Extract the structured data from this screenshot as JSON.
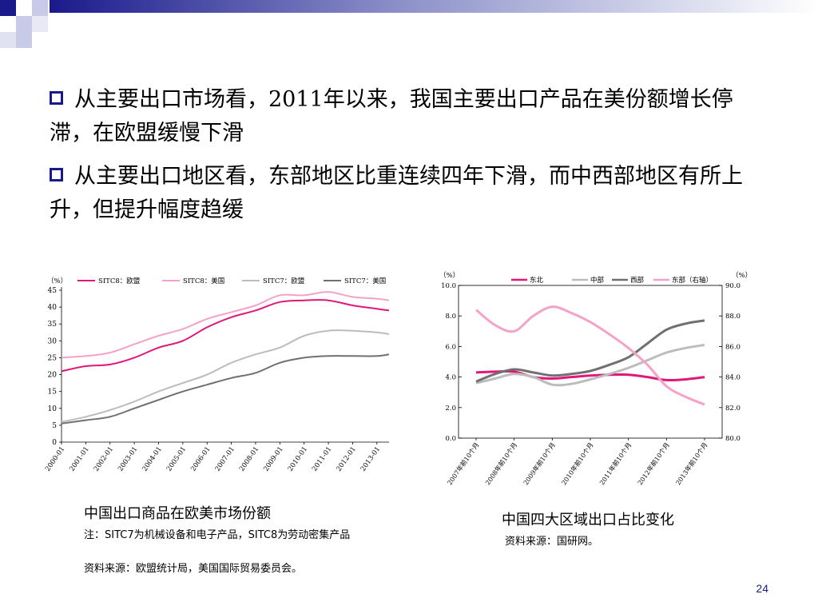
{
  "slide": {
    "bullets": [
      "从主要出口市场看，2011年以来，我国主要出口产品在美份额增长停滞，在欧盟缓慢下滑",
      "从主要出口地区看，东部地区比重连续四年下滑，而中西部地区有所上升，但提升幅度趋缓"
    ],
    "page_number": "24",
    "colors": {
      "bullet_box": "#1a1a8c",
      "deco_dark": "#1a1a8c",
      "deco_light": "#a8acd8"
    }
  },
  "chart_data": [
    {
      "type": "line",
      "caption": "中国出口商品在欧美市场份额",
      "notes": [
        "注：SITC7为机械设备和电子产品，SITC8为劳动密集产品",
        "资料来源：欧盟统计局，美国国际贸易委员会。"
      ],
      "yunit": "（%）",
      "ylim": [
        0,
        45
      ],
      "yticks": [
        "0",
        "5",
        "10",
        "15",
        "20",
        "25",
        "30",
        "35",
        "40",
        "45"
      ],
      "xlim": [
        2000,
        2013.5
      ],
      "xticks": [
        "2000-01",
        "2001-01",
        "2002-01",
        "2003-01",
        "2004-01",
        "2005-01",
        "2006-01",
        "2007-01",
        "2008-01",
        "2009-01",
        "2010-01",
        "2011-01",
        "2012-01",
        "2013-01"
      ],
      "x": [
        2000,
        2001,
        2002,
        2003,
        2004,
        2005,
        2006,
        2007,
        2008,
        2009,
        2010,
        2011,
        2012,
        2013,
        2013.5
      ],
      "series": [
        {
          "name": "SITC8：欧盟",
          "color": "#e0187a",
          "values": [
            21,
            22.5,
            23,
            25,
            28,
            30,
            34,
            37,
            39,
            41.5,
            42,
            42,
            40.5,
            39.5,
            39
          ]
        },
        {
          "name": "SITC8：美国",
          "color": "#f4a2c8",
          "values": [
            25,
            25.5,
            26.5,
            29,
            31.5,
            33.5,
            36.5,
            38.5,
            40.5,
            43.5,
            43.5,
            44.5,
            43,
            42.5,
            42
          ]
        },
        {
          "name": "SITC7：欧盟",
          "color": "#bcbcbc",
          "values": [
            6,
            7.5,
            9.5,
            12,
            15,
            17.5,
            20,
            23.5,
            26,
            28,
            31.5,
            33,
            33,
            32.5,
            32
          ]
        },
        {
          "name": "SITC7：美国",
          "color": "#707070",
          "values": [
            5.5,
            6.5,
            7.5,
            10,
            12.5,
            15,
            17,
            19,
            20.5,
            23.5,
            25,
            25.5,
            25.5,
            25.5,
            26
          ]
        }
      ]
    },
    {
      "type": "line",
      "caption": "中国四大区域出口占比变化",
      "notes": [
        "资料来源：国研网。"
      ],
      "yunit_left": "（%）",
      "yunit_right": "（%）",
      "ylim_left": [
        0,
        10
      ],
      "ylim_right": [
        80,
        90
      ],
      "yticks_left": [
        "0.0",
        "2.0",
        "4.0",
        "6.0",
        "8.0",
        "10.0"
      ],
      "yticks_right": [
        "80.0",
        "82.0",
        "84.0",
        "86.0",
        "88.0",
        "90.0"
      ],
      "xticks": [
        "2007年前10个月",
        "2008年前10个月",
        "2009年前10个月",
        "2010年前10个月",
        "2011年前10个月",
        "2012年前10个月",
        "2013年前10个月"
      ],
      "x": [
        0,
        0.5,
        1,
        1.5,
        2,
        2.5,
        3,
        3.5,
        4,
        4.5,
        5,
        5.5,
        6
      ],
      "series": [
        {
          "name": "东北",
          "axis": "left",
          "color": "#e0187a",
          "values": [
            4.3,
            4.35,
            4.35,
            4.0,
            3.9,
            4.0,
            4.1,
            4.15,
            4.15,
            4.0,
            3.8,
            3.85,
            4.0
          ]
        },
        {
          "name": "中部",
          "axis": "left",
          "color": "#bcbcbc",
          "values": [
            3.6,
            3.9,
            4.2,
            4.0,
            3.5,
            3.55,
            3.85,
            4.2,
            4.6,
            5.1,
            5.6,
            5.9,
            6.1
          ]
        },
        {
          "name": "西部",
          "axis": "left",
          "color": "#707070",
          "values": [
            3.7,
            4.2,
            4.5,
            4.3,
            4.1,
            4.2,
            4.4,
            4.8,
            5.3,
            6.2,
            7.1,
            7.5,
            7.7
          ]
        },
        {
          "name": "东部（右轴）",
          "axis": "right",
          "color": "#f4a2c8",
          "values": [
            88.4,
            87.4,
            87.0,
            88.0,
            88.6,
            88.2,
            87.6,
            86.8,
            85.9,
            84.8,
            83.4,
            82.7,
            82.2
          ]
        }
      ]
    }
  ]
}
